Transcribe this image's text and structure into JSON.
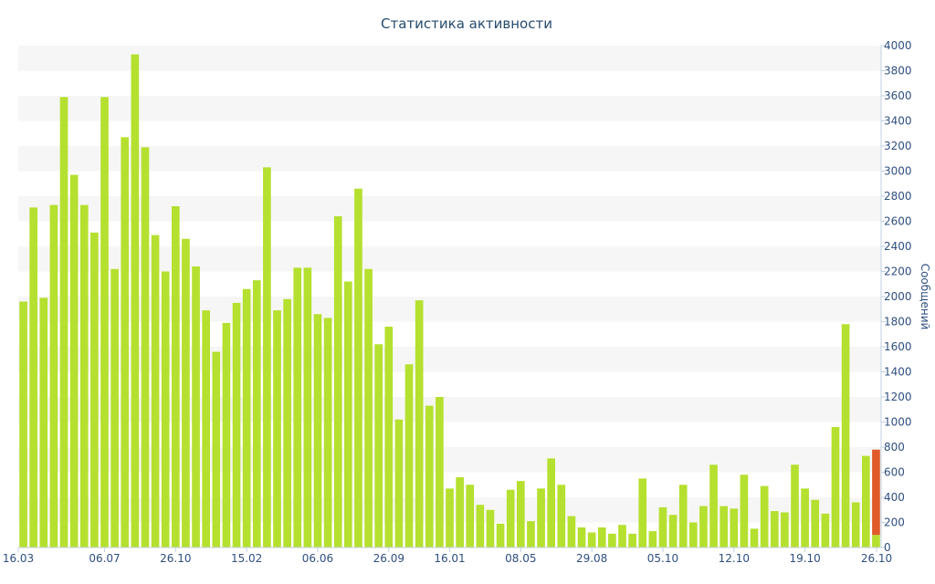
{
  "chart_data": {
    "type": "bar",
    "title": "Статистика активности",
    "ylabel": "Сообщений",
    "xlabel": "",
    "ylim": [
      0,
      4000
    ],
    "y_ticks": [
      0,
      200,
      400,
      600,
      800,
      1000,
      1200,
      1400,
      1600,
      1800,
      2000,
      2200,
      2400,
      2600,
      2800,
      3000,
      3200,
      3400,
      3600,
      3800,
      4000
    ],
    "y_axis_position": "right",
    "grid": "alternating horizontal bands",
    "x_tick_labels": [
      "16.03",
      "06.07",
      "26.10",
      "15.02",
      "06.06",
      "26.09",
      "16.01",
      "08.05",
      "29.08",
      "05.10",
      "12.10",
      "19.10",
      "26.10"
    ],
    "x_tick_indices": [
      0,
      8,
      15,
      22,
      29,
      36,
      42,
      49,
      56,
      63,
      70,
      77,
      84
    ],
    "bar_color": "#b5e02f",
    "highlight_color": "#e05a2a",
    "values": [
      1960,
      2710,
      1990,
      2730,
      3590,
      2970,
      2730,
      2510,
      3590,
      2220,
      3270,
      3930,
      3190,
      2490,
      2200,
      2720,
      2460,
      2240,
      1890,
      1560,
      1790,
      1950,
      2060,
      2130,
      3030,
      1890,
      1980,
      2230,
      2230,
      1860,
      1830,
      2640,
      2120,
      2860,
      2220,
      1620,
      1760,
      1020,
      1460,
      1970,
      1130,
      1200,
      470,
      560,
      500,
      340,
      300,
      190,
      460,
      530,
      210,
      470,
      710,
      500,
      250,
      160,
      120,
      160,
      110,
      180,
      110,
      550,
      130,
      320,
      260,
      500,
      200,
      330,
      660,
      330,
      310,
      580,
      150,
      490,
      290,
      280,
      660,
      470,
      380,
      270,
      960,
      1780,
      360,
      730,
      780
    ],
    "last_bar_segments": [
      {
        "value": 100,
        "color": "#b5e02f"
      },
      {
        "value": 680,
        "color": "#e05a2a"
      }
    ]
  }
}
